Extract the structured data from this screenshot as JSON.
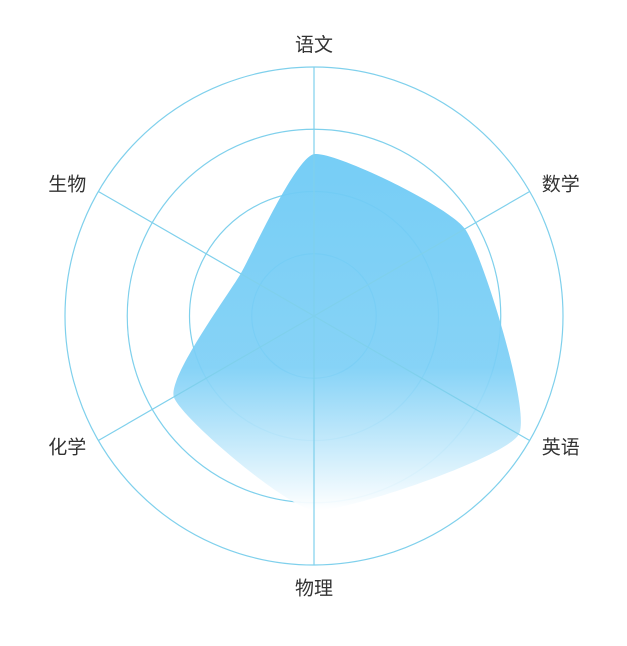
{
  "chart_data": {
    "type": "radar",
    "title": "",
    "indicators": [
      "语文",
      "数学",
      "英语",
      "物理",
      "化学",
      "生物"
    ],
    "max": 100,
    "series": [
      {
        "values": [
          65,
          70,
          95,
          78,
          65,
          34
        ]
      }
    ],
    "rings": 4,
    "colors": {
      "grid": "#7fd0ec",
      "fill_top": "#6fcbf5",
      "fill_bottom": "#ffffff",
      "label": "#333333"
    }
  }
}
